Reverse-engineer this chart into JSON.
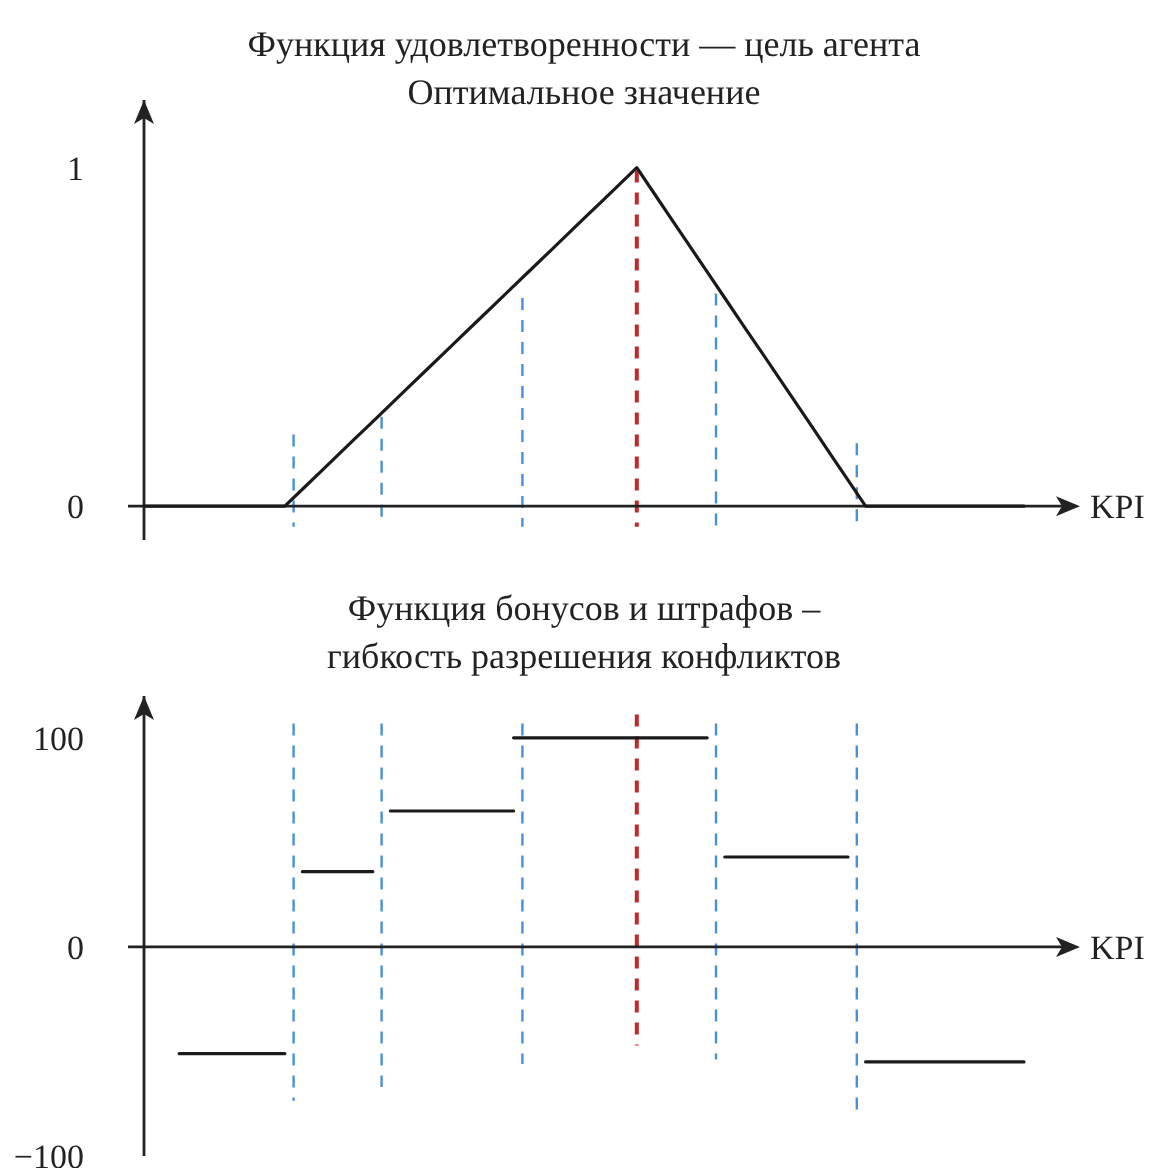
{
  "chart_data": [
    {
      "type": "line",
      "title": "Функция удовлетворенности  —  цель агента",
      "xlabel": "KPI",
      "annotations": [
        "Оптимальное значение"
      ],
      "categories": [
        null,
        null,
        null,
        null,
        null,
        null,
        null,
        null,
        null,
        null,
        null,
        null,
        null,
        null,
        null,
        null,
        null,
        null,
        null,
        null,
        null,
        null,
        null,
        null,
        null,
        null,
        null,
        null,
        null,
        null,
        null,
        null,
        null,
        null,
        null,
        null,
        null,
        null,
        null,
        null,
        null,
        null,
        null,
        null,
        null,
        null,
        null,
        null,
        null,
        null,
        null
      ],
      "series": [
        {
          "color": "#1a1a1a",
          "values": [
            0,
            0,
            0,
            0,
            0,
            0,
            0,
            0,
            0,
            0.05,
            0.1,
            0.15,
            0.2,
            0.25,
            0.3,
            0.35,
            0.4,
            0.45,
            0.5,
            0.55,
            0.6,
            0.65,
            0.7,
            0.75,
            0.8,
            0.85,
            0.9,
            0.95,
            1,
            0.923,
            0.846,
            0.769,
            0.692,
            0.615,
            0.538,
            0.462,
            0.385,
            0.308,
            0.231,
            0.154,
            0.077,
            0,
            0,
            0,
            0,
            0,
            0,
            0,
            0,
            0,
            0
          ]
        }
      ],
      "ylim": [
        -0.1,
        1.2
      ],
      "yticks": [
        0,
        1
      ],
      "tick_labels": "y",
      "grid": false,
      "marker": "none",
      "line_style": "solid"
    },
    {
      "type": "line",
      "title": "Функция бонусов и штрафов –\nгибкость разрешения конфликтов",
      "xlabel": "KPI",
      "categories": [
        null,
        null,
        null,
        null,
        null,
        null,
        null,
        null,
        null,
        null,
        null,
        null,
        null,
        null,
        null,
        null,
        null,
        null,
        null,
        null,
        null,
        null,
        null,
        null,
        null,
        null,
        null,
        null,
        null,
        null,
        null,
        null,
        null,
        null,
        null,
        null,
        null,
        null,
        null,
        null,
        null,
        null,
        null,
        null,
        null,
        null,
        null,
        null,
        null,
        null,
        null
      ],
      "series": [
        {
          "color": "#1a1a1a",
          "values": [
            null,
            null,
            -51,
            -51,
            -51,
            -51,
            -51,
            -51,
            -51,
            null,
            null,
            null,
            null,
            null,
            null,
            null,
            null,
            null,
            null,
            null,
            null,
            null,
            null,
            null,
            null,
            null,
            null,
            null,
            null,
            null,
            null,
            null,
            null,
            null,
            null,
            null,
            null,
            null,
            null,
            null,
            null,
            null,
            null,
            null,
            null,
            null,
            null,
            null,
            null,
            null,
            null
          ]
        },
        {
          "color": "#1a1a1a",
          "values": [
            null,
            null,
            null,
            null,
            null,
            null,
            null,
            null,
            null,
            36,
            36,
            36,
            36,
            36,
            null,
            null,
            null,
            null,
            null,
            null,
            null,
            null,
            null,
            null,
            null,
            null,
            null,
            null,
            null,
            null,
            null,
            null,
            null,
            null,
            null,
            null,
            null,
            null,
            null,
            null,
            null,
            null,
            null,
            null,
            null,
            null,
            null,
            null,
            null,
            null,
            null
          ]
        },
        {
          "color": "#1a1a1a",
          "values": [
            null,
            null,
            null,
            null,
            null,
            null,
            null,
            null,
            null,
            null,
            null,
            null,
            null,
            null,
            65,
            65,
            65,
            65,
            65,
            65,
            65,
            65,
            null,
            null,
            null,
            null,
            null,
            null,
            null,
            null,
            null,
            null,
            null,
            null,
            null,
            null,
            null,
            null,
            null,
            null,
            null,
            null,
            null,
            null,
            null,
            null,
            null,
            null,
            null,
            null,
            null
          ]
        },
        {
          "color": "#1a1a1a",
          "values": [
            null,
            null,
            null,
            null,
            null,
            null,
            null,
            null,
            null,
            null,
            null,
            null,
            null,
            null,
            null,
            null,
            null,
            null,
            null,
            null,
            null,
            100,
            100,
            100,
            100,
            100,
            100,
            100,
            100,
            100,
            100,
            100,
            100,
            null,
            null,
            null,
            null,
            null,
            null,
            null,
            null,
            null,
            null,
            null,
            null,
            null,
            null,
            null,
            null,
            null,
            null
          ]
        },
        {
          "color": "#1a1a1a",
          "values": [
            null,
            null,
            null,
            null,
            null,
            null,
            null,
            null,
            null,
            null,
            null,
            null,
            null,
            null,
            null,
            null,
            null,
            null,
            null,
            null,
            null,
            null,
            null,
            null,
            null,
            null,
            null,
            null,
            null,
            null,
            null,
            null,
            null,
            43,
            43,
            43,
            43,
            43,
            43,
            43,
            43,
            null,
            null,
            null,
            null,
            null,
            null,
            null,
            null,
            null,
            null
          ]
        },
        {
          "color": "#1a1a1a",
          "values": [
            null,
            null,
            null,
            null,
            null,
            null,
            null,
            null,
            null,
            null,
            null,
            null,
            null,
            null,
            null,
            null,
            null,
            null,
            null,
            null,
            null,
            null,
            null,
            null,
            null,
            null,
            null,
            null,
            null,
            null,
            null,
            null,
            null,
            null,
            null,
            null,
            null,
            null,
            null,
            null,
            null,
            -55,
            -55,
            -55,
            -55,
            -55,
            -55,
            -55,
            -55,
            -55,
            -55
          ]
        }
      ],
      "ylim": [
        -100,
        120
      ],
      "yticks": [
        -100,
        0,
        100
      ],
      "tick_labels": "y",
      "grid": false,
      "marker": "none",
      "line_style": "solid"
    }
  ]
}
